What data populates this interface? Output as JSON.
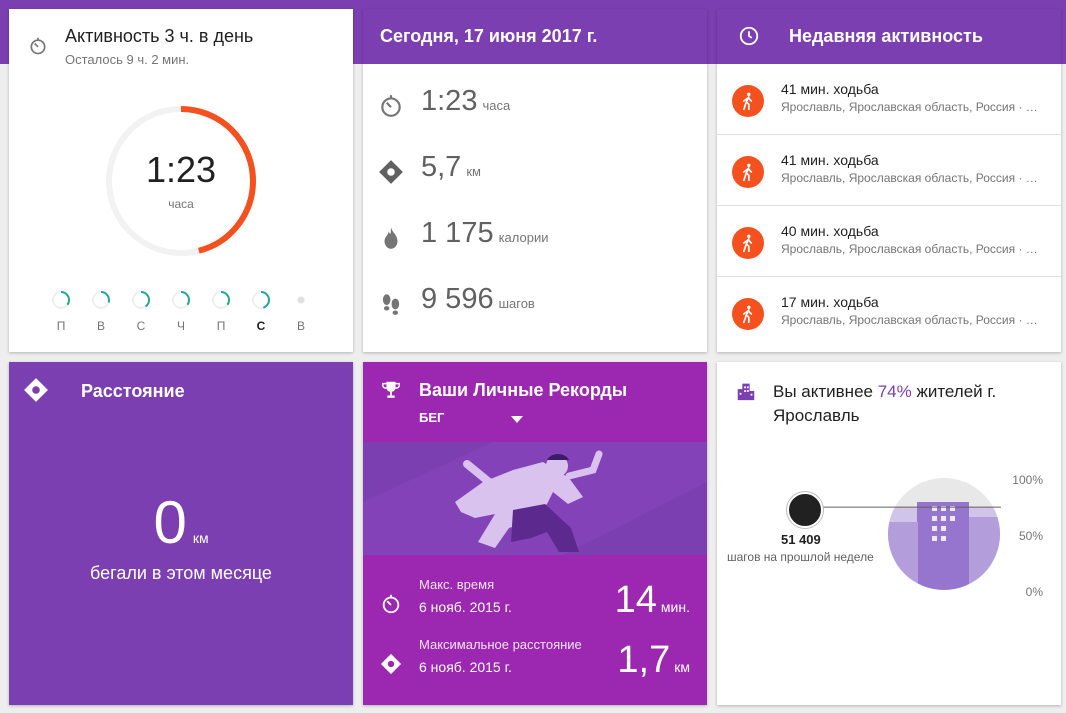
{
  "activity": {
    "title": "Активность 3 ч. в день",
    "remaining": "Осталось 9 ч. 2 мин.",
    "value": "1:23",
    "unit": "часа",
    "goal_progress": 0.46,
    "days": [
      {
        "label": "П",
        "progress": 0.35,
        "today": false
      },
      {
        "label": "В",
        "progress": 0.3,
        "today": false
      },
      {
        "label": "С",
        "progress": 0.4,
        "today": false
      },
      {
        "label": "Ч",
        "progress": 0.35,
        "today": false
      },
      {
        "label": "П",
        "progress": 0.35,
        "today": false
      },
      {
        "label": "С",
        "progress": 0.45,
        "today": true
      },
      {
        "label": "В",
        "progress": 0,
        "today": false
      }
    ]
  },
  "today": {
    "title": "Сегодня, 17 июня 2017 г.",
    "stats": [
      {
        "icon": "timer-icon",
        "value": "1:23",
        "unit": "часа"
      },
      {
        "icon": "location-diamond-icon",
        "value": "5,7",
        "unit": "км"
      },
      {
        "icon": "flame-icon",
        "value": "1 175",
        "unit": "калории"
      },
      {
        "icon": "footsteps-icon",
        "value": "9 596",
        "unit": "шагов"
      }
    ]
  },
  "recent": {
    "title": "Недавняя активность",
    "items": [
      {
        "title": "41 мин. ходьба",
        "location": "Ярославль, Ярославская область, Россия · …"
      },
      {
        "title": "41 мин. ходьба",
        "location": "Ярославль, Ярославская область, Россия · …"
      },
      {
        "title": "40 мин. ходьба",
        "location": "Ярославль, Ярославская область, Россия · …"
      },
      {
        "title": "17 мин. ходьба",
        "location": "Ярославль, Ярославская область, Россия · …"
      }
    ]
  },
  "distance": {
    "title": "Расстояние",
    "value": "0",
    "unit": "км",
    "caption": "бегали в этом месяце"
  },
  "records": {
    "title": "Ваши Личные Рекорды",
    "dropdown": "БЕГ",
    "rows": [
      {
        "label": "Макс. время",
        "date": "6 нояб. 2015 г.",
        "value": "14",
        "unit": "мин."
      },
      {
        "label": "Максимальное расстояние",
        "date": "6 нояб. 2015 г.",
        "value": "1,7",
        "unit": "км"
      }
    ]
  },
  "compare": {
    "title_prefix": "Вы активнее ",
    "percent": "74%",
    "title_suffix": " жителей г. Ярославль",
    "steps": "51 409",
    "steps_label": "шагов на прошлой неделе",
    "ticks": [
      "100%",
      "50%",
      "0%"
    ],
    "level": 0.74
  },
  "colors": {
    "purple": "#7b3fb2",
    "magenta": "#9c27b0",
    "orange": "#f4511e",
    "teal": "#26a69a"
  }
}
